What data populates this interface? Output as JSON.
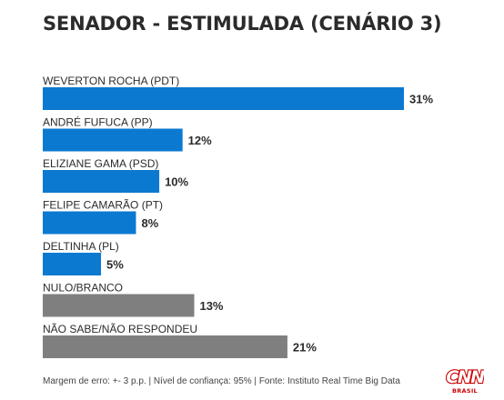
{
  "title": "SENADOR - ESTIMULADA (CENÁRIO 3)",
  "footer": "Margem de erro: +- 3 p.p. | Nível de confiança: 95% | Fonte: Instituto Real Time Big Data",
  "logo": {
    "text": "CNN",
    "subtext": "BRASIL",
    "color": "#cc0000"
  },
  "colors": {
    "candidate": "#0b79d0",
    "other": "#7f7f7f",
    "text": "#2b2b2b"
  },
  "chart_data": {
    "type": "bar",
    "orientation": "horizontal",
    "title": "SENADOR - ESTIMULADA (CENÁRIO 3)",
    "xlabel": "",
    "ylabel": "",
    "unit": "%",
    "xlim": [
      0,
      31
    ],
    "grid": false,
    "legend": "none",
    "categories": [
      "WEVERTON ROCHA (PDT)",
      "ANDRÉ FUFUCA (PP)",
      "ELIZIANE GAMA (PSD)",
      "FELIPE CAMARÃO (PT)",
      "DELTINHA (PL)",
      "NULO/BRANCO",
      "NÃO SABE/NÃO RESPONDEU"
    ],
    "values": [
      31,
      12,
      10,
      8,
      5,
      13,
      21
    ],
    "value_labels": [
      "31%",
      "12%",
      "10%",
      "8%",
      "5%",
      "13%",
      "21%"
    ],
    "bar_colors": [
      "#0b79d0",
      "#0b79d0",
      "#0b79d0",
      "#0b79d0",
      "#0b79d0",
      "#7f7f7f",
      "#7f7f7f"
    ]
  }
}
